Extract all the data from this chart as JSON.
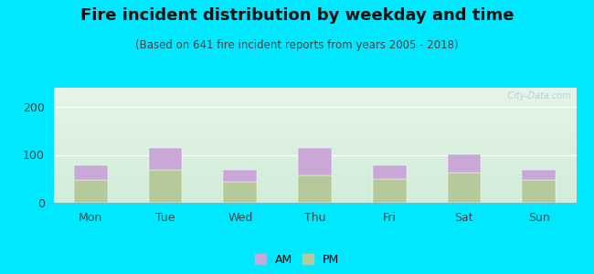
{
  "title": "Fire incident distribution by weekday and time",
  "subtitle": "(Based on 641 fire incident reports from years 2005 - 2018)",
  "categories": [
    "Mon",
    "Tue",
    "Wed",
    "Thu",
    "Fri",
    "Sat",
    "Sun"
  ],
  "am_values": [
    30,
    46,
    25,
    57,
    28,
    38,
    20
  ],
  "pm_values": [
    48,
    68,
    43,
    58,
    50,
    63,
    48
  ],
  "am_color": "#c9a8d8",
  "pm_color": "#b5c99a",
  "ylim": [
    0,
    240
  ],
  "yticks": [
    0,
    100,
    200
  ],
  "bg_outer": "#00e8ff",
  "bar_width": 0.45,
  "title_fontsize": 13,
  "subtitle_fontsize": 8.5,
  "tick_fontsize": 9,
  "legend_fontsize": 9,
  "watermark": "  City-Data.com"
}
